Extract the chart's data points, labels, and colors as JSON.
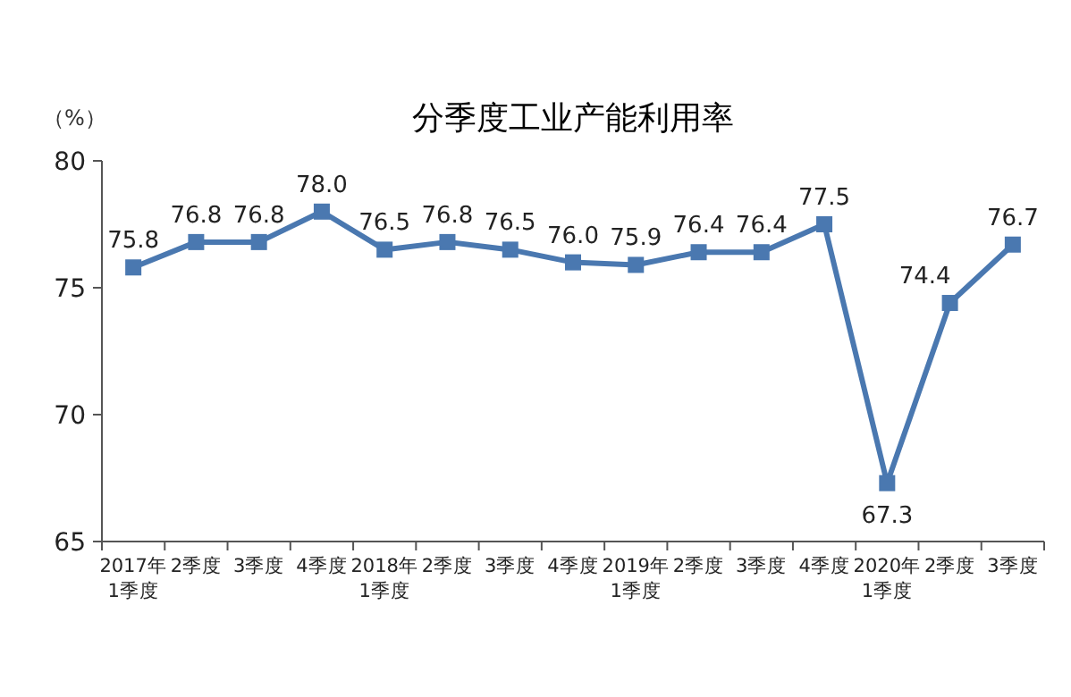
{
  "chart_data": {
    "type": "line",
    "title": "分季度工业产能利用率",
    "ylabel": "（%）",
    "categories": [
      "2017年\n1季度",
      "2季度",
      "3季度",
      "4季度",
      "2018年\n1季度",
      "2季度",
      "3季度",
      "4季度",
      "2019年\n1季度",
      "2季度",
      "3季度",
      "4季度",
      "2020年\n1季度",
      "2季度",
      "3季度"
    ],
    "series": [
      {
        "color": "#4a78b0",
        "values": [
          75.8,
          76.8,
          76.8,
          78.0,
          76.5,
          76.8,
          76.5,
          76.0,
          75.9,
          76.4,
          76.4,
          77.5,
          67.3,
          74.4,
          76.7
        ],
        "value_labels": [
          "75.8",
          "76.8",
          "76.8",
          "78.0",
          "76.5",
          "76.8",
          "76.5",
          "76.0",
          "75.9",
          "76.4",
          "76.4",
          "77.5",
          "67.3",
          "74.4",
          "76.7"
        ]
      }
    ],
    "ylim": [
      65,
      80
    ],
    "yticks": [
      65,
      70,
      75,
      80
    ],
    "marker": "square",
    "line_style": "solid",
    "grid": false
  }
}
